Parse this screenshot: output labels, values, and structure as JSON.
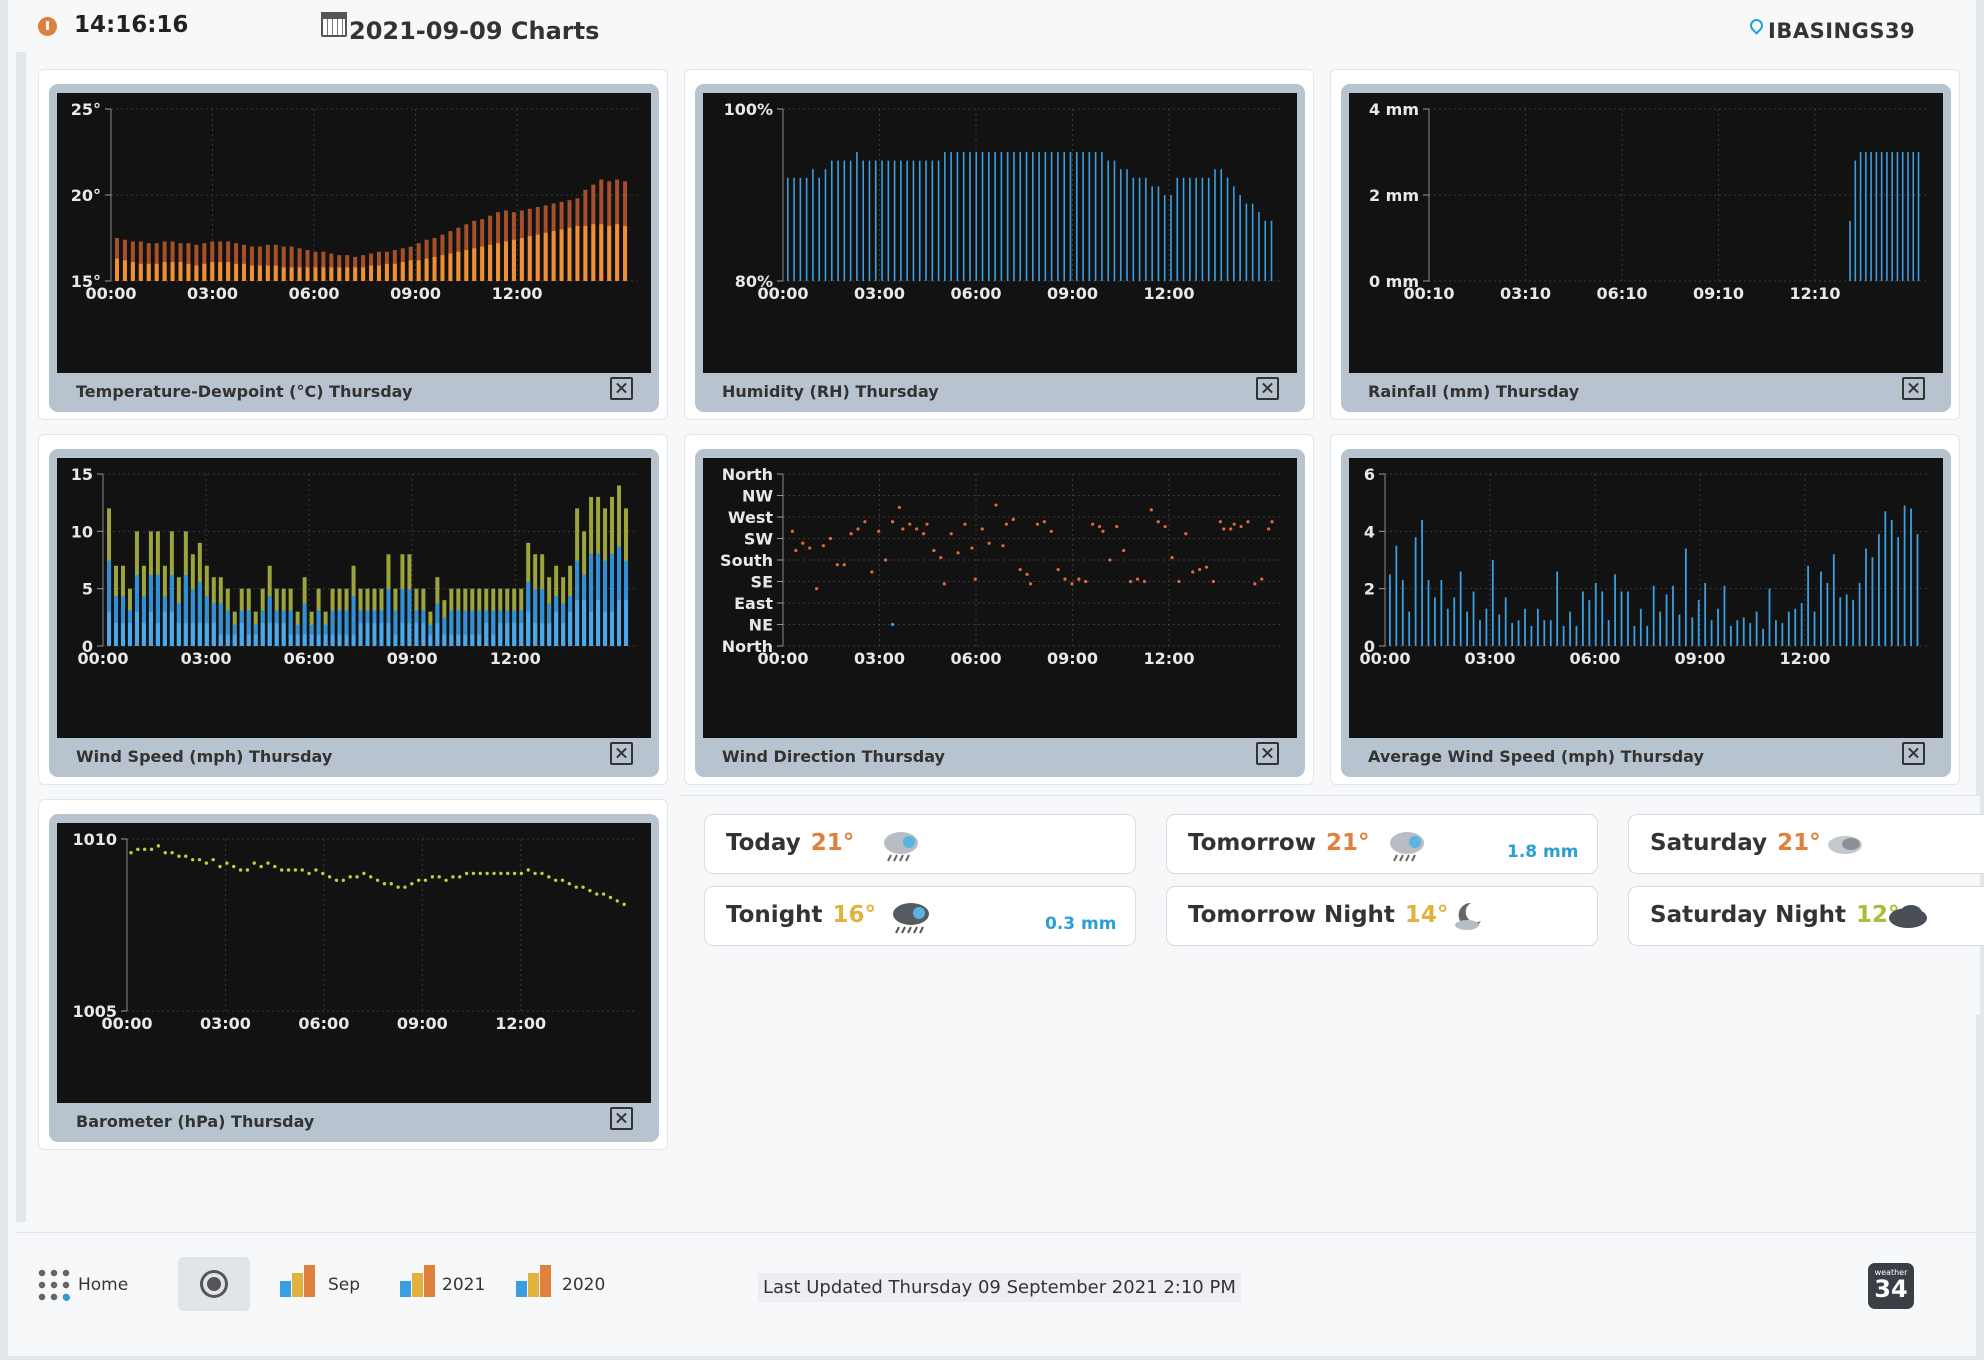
{
  "header": {
    "time": "14:16:16",
    "title": "2021-09-09 Charts",
    "station_id": "IBASINGS39"
  },
  "charts": [
    {
      "id": "temperature",
      "caption": "Temperature-Dewpoint (°C) Thursday",
      "chart_data": {
        "type": "bar",
        "y_ticks": [
          "25°",
          "20°",
          "15°"
        ],
        "x_ticks": [
          "00:00",
          "03:00",
          "06:00",
          "09:00",
          "12:00"
        ],
        "ylim": [
          15,
          25
        ],
        "series": [
          {
            "values": [
              17.5,
              17.4,
              17.3,
              17.3,
              17.2,
              17.2,
              17.3,
              17.3,
              17.2,
              17.2,
              17.1,
              17.2,
              17.3,
              17.3,
              17.3,
              17.2,
              17.1,
              17.0,
              17.0,
              17.1,
              17.1,
              17.0,
              17.0,
              16.9,
              16.8,
              16.7,
              16.7,
              16.6,
              16.5,
              16.5,
              16.4,
              16.5,
              16.6,
              16.7,
              16.7,
              16.8,
              16.9,
              17.0,
              17.2,
              17.4,
              17.5,
              17.7,
              17.9,
              18.1,
              18.3,
              18.5,
              18.6,
              18.8,
              19.0,
              19.1,
              19.0,
              19.1,
              19.2,
              19.3,
              19.4,
              19.5,
              19.6,
              19.7,
              19.8,
              20.3,
              20.6,
              20.9,
              20.8,
              20.9,
              20.8
            ]
          },
          {
            "values": [
              16.3,
              16.2,
              16.1,
              16.0,
              16.0,
              16.0,
              16.1,
              16.1,
              16.1,
              16.0,
              15.9,
              16.0,
              16.1,
              16.1,
              16.1,
              16.0,
              16.0,
              15.9,
              15.9,
              15.9,
              15.9,
              15.8,
              15.8,
              15.8,
              15.8,
              15.8,
              15.8,
              15.8,
              15.8,
              15.8,
              15.8,
              15.8,
              15.9,
              15.9,
              16.0,
              16.0,
              16.1,
              16.2,
              16.2,
              16.3,
              16.4,
              16.5,
              16.6,
              16.7,
              16.8,
              16.9,
              17.0,
              17.1,
              17.2,
              17.3,
              17.4,
              17.5,
              17.6,
              17.7,
              17.8,
              17.9,
              18.0,
              18.1,
              18.2,
              18.2,
              18.3,
              18.3,
              18.2,
              18.3,
              18.2
            ]
          }
        ]
      }
    },
    {
      "id": "humidity",
      "caption": "Humidity (RH) Thursday",
      "chart_data": {
        "type": "bar",
        "y_ticks": [
          "100%",
          "80%"
        ],
        "x_ticks": [
          "00:00",
          "03:00",
          "06:00",
          "09:00",
          "12:00"
        ],
        "ylim": [
          80,
          100
        ],
        "values": [
          92,
          92,
          92,
          92,
          93,
          92,
          93,
          94,
          94,
          94,
          94,
          95,
          94,
          94,
          94,
          94,
          94,
          94,
          94,
          94,
          94,
          94,
          94,
          94,
          94,
          95,
          95,
          95,
          95,
          95,
          95,
          95,
          95,
          95,
          95,
          95,
          95,
          95,
          95,
          95,
          95,
          95,
          95,
          95,
          95,
          95,
          95,
          95,
          95,
          95,
          95,
          94,
          94,
          93,
          93,
          92,
          92,
          92,
          91,
          91,
          90,
          90,
          92,
          92,
          92,
          92,
          92,
          92,
          93,
          93,
          92,
          91,
          90,
          89,
          89,
          88,
          87,
          87
        ]
      }
    },
    {
      "id": "rainfall",
      "caption": "Rainfall (mm) Thursday",
      "chart_data": {
        "type": "bar",
        "y_ticks": [
          "4 mm",
          "2 mm",
          "0 mm"
        ],
        "x_ticks": [
          "00:10",
          "03:10",
          "06:10",
          "09:10",
          "12:10"
        ],
        "ylim": [
          0,
          4
        ],
        "values": [
          0,
          0,
          0,
          0,
          0,
          0,
          0,
          0,
          0,
          0,
          0,
          0,
          0,
          0,
          0,
          0,
          0,
          0,
          0,
          0,
          0,
          0,
          0,
          0,
          0,
          0,
          0,
          0,
          0,
          0,
          0,
          0,
          0,
          0,
          0,
          0,
          0,
          0,
          0,
          0,
          0,
          0,
          0,
          0,
          0,
          0,
          0,
          0,
          0,
          0,
          0,
          0,
          0,
          0,
          0,
          0,
          0,
          0,
          0,
          0,
          0,
          0,
          0,
          0,
          0,
          0,
          0,
          0,
          0,
          0,
          0,
          0,
          0,
          0,
          0,
          0,
          0,
          0,
          0,
          1.4,
          2.8,
          3.0,
          3.0,
          3.0,
          3.0,
          3.0,
          3.0,
          3.0,
          3.0,
          3.0,
          3.0,
          3.0,
          3.0
        ]
      }
    },
    {
      "id": "wind-speed",
      "caption": "Wind Speed (mph) Thursday",
      "chart_data": {
        "type": "bar",
        "y_ticks": [
          "15",
          "10",
          "5",
          "0"
        ],
        "x_ticks": [
          "00:00",
          "03:00",
          "06:00",
          "09:00",
          "12:00"
        ],
        "ylim": [
          0,
          15
        ],
        "series": [
          {
            "name": "gust",
            "values": [
              12,
              7,
              7,
              5,
              10,
              7,
              10,
              10,
              7,
              10,
              6,
              10,
              8,
              9,
              7,
              6,
              6,
              5,
              3,
              5,
              5,
              3,
              5,
              7,
              5,
              5,
              5,
              3,
              6,
              3,
              5,
              3,
              5,
              5,
              5,
              7,
              5,
              5,
              5,
              5,
              8,
              5,
              8,
              8,
              5,
              5,
              3,
              6,
              4,
              5,
              5,
              5,
              5,
              5,
              5,
              5,
              5,
              5,
              5,
              5,
              9,
              8,
              8,
              6,
              7,
              6,
              7,
              12,
              10,
              13,
              13,
              12,
              13,
              14,
              12
            ]
          },
          {
            "name": "wind",
            "values": [
              3,
              2,
              2,
              2,
              3,
              2,
              3,
              2,
              3,
              3,
              2,
              2,
              2,
              2,
              2,
              2,
              1,
              1,
              1,
              2,
              1,
              1,
              2,
              2,
              2,
              2,
              1,
              1,
              1,
              1,
              1,
              1,
              1,
              1,
              1,
              1,
              2,
              2,
              2,
              2,
              2,
              1,
              2,
              2,
              2,
              2,
              1,
              2,
              1,
              1,
              1,
              1,
              1,
              1,
              2,
              1,
              2,
              2,
              2,
              2,
              3,
              2,
              2,
              2,
              3,
              2,
              3,
              4,
              4,
              3,
              4,
              3,
              3,
              4,
              4
            ]
          }
        ]
      }
    },
    {
      "id": "wind-direction",
      "caption": "Wind Direction Thursday",
      "chart_data": {
        "type": "scatter",
        "y_ticks": [
          "North",
          "NW",
          "West",
          "SW",
          "South",
          "SE",
          "East",
          "NE",
          "North"
        ],
        "x_ticks": [
          "00:00",
          "03:00",
          "06:00",
          "09:00",
          "12:00"
        ],
        "ylim": [
          0,
          360
        ],
        "points": [
          [
            0.1,
            240
          ],
          [
            0.2,
            200
          ],
          [
            0.4,
            215
          ],
          [
            0.6,
            205
          ],
          [
            0.8,
            120
          ],
          [
            1.0,
            210
          ],
          [
            1.2,
            225
          ],
          [
            1.4,
            170
          ],
          [
            1.6,
            170
          ],
          [
            1.8,
            235
          ],
          [
            2.0,
            245
          ],
          [
            2.2,
            260
          ],
          [
            2.4,
            155
          ],
          [
            2.6,
            240
          ],
          [
            2.8,
            180
          ],
          [
            3.0,
            260
          ],
          [
            3.0,
            45
          ],
          [
            3.2,
            290
          ],
          [
            3.3,
            245
          ],
          [
            3.5,
            255
          ],
          [
            3.7,
            245
          ],
          [
            3.9,
            235
          ],
          [
            4.0,
            255
          ],
          [
            4.2,
            200
          ],
          [
            4.4,
            185
          ],
          [
            4.5,
            130
          ],
          [
            4.7,
            235
          ],
          [
            4.9,
            195
          ],
          [
            5.1,
            255
          ],
          [
            5.3,
            205
          ],
          [
            5.4,
            140
          ],
          [
            5.6,
            245
          ],
          [
            5.8,
            215
          ],
          [
            6.0,
            295
          ],
          [
            6.2,
            210
          ],
          [
            6.3,
            255
          ],
          [
            6.5,
            265
          ],
          [
            6.7,
            160
          ],
          [
            6.9,
            150
          ],
          [
            7.0,
            130
          ],
          [
            7.2,
            255
          ],
          [
            7.4,
            260
          ],
          [
            7.6,
            240
          ],
          [
            7.8,
            160
          ],
          [
            8.0,
            140
          ],
          [
            8.2,
            130
          ],
          [
            8.4,
            140
          ],
          [
            8.6,
            135
          ],
          [
            8.8,
            255
          ],
          [
            9.0,
            250
          ],
          [
            9.1,
            240
          ],
          [
            9.3,
            180
          ],
          [
            9.5,
            250
          ],
          [
            9.7,
            200
          ],
          [
            9.9,
            135
          ],
          [
            10.1,
            140
          ],
          [
            10.3,
            135
          ],
          [
            10.5,
            285
          ],
          [
            10.7,
            260
          ],
          [
            10.9,
            250
          ],
          [
            11.1,
            185
          ],
          [
            11.3,
            135
          ],
          [
            11.5,
            235
          ],
          [
            11.7,
            155
          ],
          [
            11.9,
            160
          ],
          [
            12.1,
            165
          ],
          [
            12.3,
            135
          ],
          [
            12.5,
            260
          ],
          [
            12.6,
            245
          ],
          [
            12.8,
            245
          ],
          [
            12.9,
            255
          ],
          [
            13.1,
            250
          ],
          [
            13.3,
            260
          ],
          [
            13.5,
            130
          ],
          [
            13.7,
            140
          ],
          [
            13.9,
            245
          ],
          [
            14.0,
            260
          ]
        ]
      }
    },
    {
      "id": "avg-wind-speed",
      "caption": "Average Wind Speed (mph) Thursday",
      "chart_data": {
        "type": "bar",
        "y_ticks": [
          "6",
          "4",
          "2",
          "0"
        ],
        "x_ticks": [
          "00:00",
          "03:00",
          "06:00",
          "09:00",
          "12:00"
        ],
        "ylim": [
          0,
          6
        ],
        "values": [
          2.5,
          3.5,
          2.3,
          1.2,
          3.8,
          4.4,
          2.3,
          1.7,
          2.3,
          1.3,
          1.7,
          2.6,
          1.2,
          1.9,
          0.9,
          1.3,
          3.0,
          1.1,
          1.7,
          0.8,
          0.9,
          1.3,
          0.7,
          1.3,
          0.9,
          0.9,
          2.6,
          0.7,
          1.2,
          0.7,
          1.9,
          1.6,
          2.2,
          1.9,
          0.9,
          2.5,
          1.9,
          1.9,
          0.7,
          1.3,
          0.7,
          2.1,
          1.2,
          1.8,
          2.1,
          1.1,
          3.4,
          1.0,
          1.6,
          2.2,
          0.9,
          1.3,
          2.1,
          0.7,
          0.9,
          1.0,
          0.8,
          1.2,
          0.6,
          2.0,
          0.9,
          0.8,
          1.2,
          1.3,
          1.5,
          2.8,
          1.2,
          2.6,
          2.2,
          3.2,
          1.7,
          1.8,
          1.6,
          2.2,
          3.4,
          3.1,
          3.9,
          4.7,
          4.4,
          3.8,
          4.9,
          4.8,
          3.9
        ]
      }
    },
    {
      "id": "barometer",
      "caption": "Barometer (hPa) Thursday",
      "chart_data": {
        "type": "scatter",
        "y_ticks": [
          "1010",
          "1005"
        ],
        "x_ticks": [
          "00:00",
          "03:00",
          "06:00",
          "09:00",
          "12:00"
        ],
        "ylim": [
          1005,
          1010
        ],
        "values": [
          1009.6,
          1009.7,
          1009.7,
          1009.7,
          1009.8,
          1009.6,
          1009.6,
          1009.5,
          1009.5,
          1009.4,
          1009.4,
          1009.3,
          1009.4,
          1009.2,
          1009.3,
          1009.2,
          1009.1,
          1009.1,
          1009.3,
          1009.2,
          1009.3,
          1009.2,
          1009.1,
          1009.1,
          1009.1,
          1009.1,
          1009.0,
          1009.1,
          1009.0,
          1008.9,
          1008.8,
          1008.8,
          1008.9,
          1008.9,
          1009.0,
          1008.9,
          1008.8,
          1008.7,
          1008.7,
          1008.6,
          1008.6,
          1008.7,
          1008.8,
          1008.8,
          1008.9,
          1008.9,
          1008.8,
          1008.9,
          1008.9,
          1009.0,
          1009.0,
          1009.0,
          1009.0,
          1009.0,
          1009.0,
          1009.0,
          1009.0,
          1009.0,
          1009.1,
          1009.0,
          1009.0,
          1008.9,
          1008.8,
          1008.8,
          1008.7,
          1008.6,
          1008.6,
          1008.5,
          1008.4,
          1008.4,
          1008.3,
          1008.2,
          1008.1
        ]
      }
    }
  ],
  "forecast": [
    {
      "label": "Today",
      "temp": "21°",
      "temp_color": "#e0803d",
      "rain": "",
      "icon": "rain-cloud-icon"
    },
    {
      "label": "Tomorrow",
      "temp": "21°",
      "temp_color": "#e0803d",
      "rain": "1.8 mm",
      "icon": "rain-cloud-icon"
    },
    {
      "label": "Saturday",
      "temp": "21°",
      "temp_color": "#e0803d",
      "rain": "",
      "icon": "partly-cloudy-icon"
    },
    {
      "label": "Tonight",
      "temp": "16°",
      "temp_color": "#e2b23f",
      "rain": "0.3 mm",
      "icon": "heavy-rain-icon"
    },
    {
      "label": "Tomorrow Night",
      "temp": "14°",
      "temp_color": "#e2b23f",
      "rain": "",
      "icon": "night-moon-icon"
    },
    {
      "label": "Saturday Night",
      "temp": "12°",
      "temp_color": "#a6bf3a",
      "rain": "",
      "icon": "dark-cloud-icon"
    }
  ],
  "footer": {
    "home": "Home",
    "links": [
      "Sep",
      "2021",
      "2020"
    ],
    "last_updated": "Last Updated Thursday 09 September 2021 2:10 PM",
    "brand_small": "weather",
    "brand_big": "34"
  },
  "colors": {
    "temperature": "#f08f35",
    "dewpoint": "#a5502a",
    "humidity": "#3a9fe0",
    "wind": "#2f8fd8",
    "gust": "#9da43b",
    "direction": "#e06a3a",
    "barometer": "#b5d43a"
  }
}
